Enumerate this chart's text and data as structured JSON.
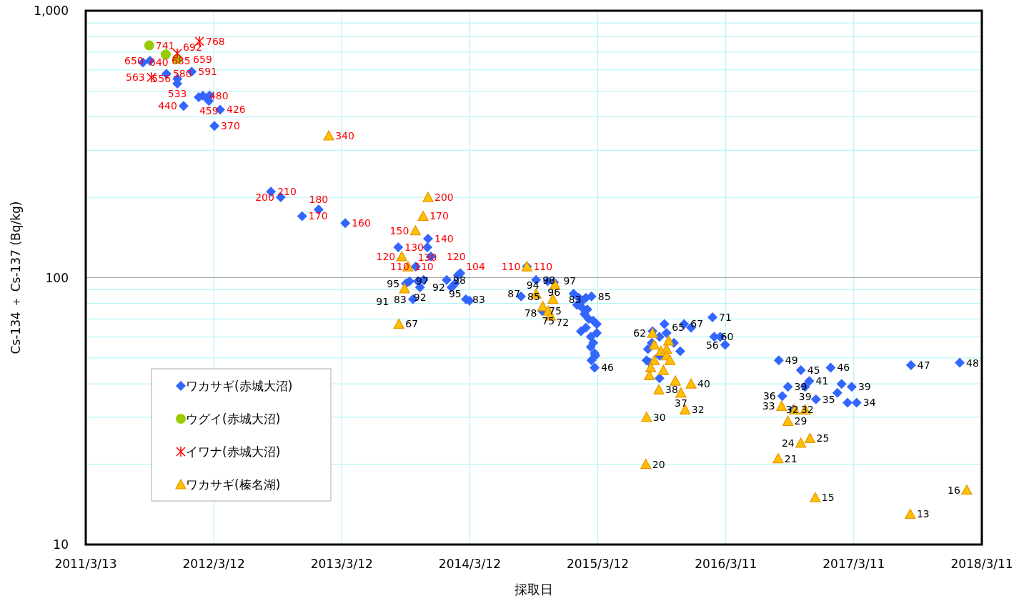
{
  "chart_data": {
    "type": "scatter",
    "xlabel": "採取日",
    "ylabel": "Cs-134 ＋ Cs-137 (Bq/kg)",
    "log": "y",
    "xlim": [
      "2011-03-13",
      "2018-03-11"
    ],
    "xticks": [
      {
        "value": "2011-03-13",
        "label": "2011/3/13"
      },
      {
        "value": "2012-03-12",
        "label": "2012/3/12"
      },
      {
        "value": "2013-03-12",
        "label": "2013/3/12"
      },
      {
        "value": "2014-03-12",
        "label": "2014/3/12"
      },
      {
        "value": "2015-03-12",
        "label": "2015/3/12"
      },
      {
        "value": "2016-03-11",
        "label": "2016/3/11"
      },
      {
        "value": "2017-03-11",
        "label": "2017/3/11"
      },
      {
        "value": "2018-03-11",
        "label": "2018/3/11"
      }
    ],
    "ylim": [
      10,
      1000
    ],
    "yticks": [
      10,
      100,
      {
        "value": 1000,
        "label": "1,000"
      }
    ],
    "grid": true,
    "legend": "bottom left",
    "ref_lines": [
      {
        "axis": "y",
        "value": 100,
        "color": "#a6a6a6",
        "label": null
      }
    ],
    "series": [
      {
        "name": "ワカサギ(赤城大沼)",
        "color": "#3366ff",
        "marker": "diamond",
        "x": [
          "2011-08-23",
          "2011-09-12",
          "2011-10-29",
          "2011-11-29",
          "2011-11-29",
          "2012-01-09",
          "2012-01-29",
          "2012-02-10",
          "2012-02-22",
          "2012-02-29",
          "2012-02-27",
          "2012-03-30",
          "2011-12-17",
          "2012-03-14",
          "2012-08-22",
          "2012-09-19",
          "2012-11-19",
          "2013-01-05",
          "2013-03-22",
          "2013-08-20",
          "2013-11-13",
          "2013-11-11",
          "2013-11-21",
          "2013-10-09",
          "2013-09-21",
          "2013-09-11",
          "2013-10-15",
          "2013-10-31",
          "2013-10-21",
          "2013-10-01",
          "2014-01-05",
          "2014-01-19",
          "2014-01-29",
          "2014-02-06",
          "2014-02-13",
          "2014-03-01",
          "2014-03-11",
          "2014-08-05",
          "2014-08-22",
          "2014-09-17",
          "2014-10-20",
          "2014-11-07",
          "2014-10-05",
          "2015-01-02",
          "2015-01-17",
          "2015-01-27",
          "2015-02-06",
          "2015-02-22",
          "2015-01-12",
          "2015-01-27",
          "2015-02-10",
          "2015-02-02",
          "2015-02-14",
          "2015-02-27",
          "2015-03-09",
          "2015-01-23",
          "2015-02-06",
          "2015-02-20",
          "2015-03-09",
          "2015-02-27",
          "2015-02-20",
          "2015-03-03",
          "2015-03-05",
          "2015-02-22",
          "2015-03-03",
          "2015-08-15",
          "2015-09-04",
          "2015-09-18",
          "2015-09-24",
          "2015-08-02",
          "2015-08-13",
          "2015-09-04",
          "2015-10-15",
          "2015-11-02",
          "2015-07-29",
          "2015-08-08",
          "2015-09-04",
          "2015-11-13",
          "2015-12-03",
          "2016-02-02",
          "2016-02-07",
          "2016-02-24",
          "2016-03-09",
          "2016-08-09",
          "2016-10-11",
          "2017-01-04",
          "2017-08-21",
          "2018-01-07",
          "2016-09-04",
          "2016-08-19",
          "2016-11-04",
          "2016-10-23",
          "2017-02-04",
          "2017-03-05",
          "2017-01-23",
          "2016-11-23",
          "2017-02-21",
          "2017-03-19",
          "2016-09-19"
        ],
        "values": [
          640,
          650,
          580,
          556,
          533,
          591,
          474,
          480,
          472,
          481,
          459,
          426,
          440,
          370,
          210,
          200,
          170,
          180,
          160,
          130,
          140,
          130,
          120,
          110,
          97,
          95,
          97,
          98,
          92,
          83,
          98,
          92,
          95,
          102,
          104,
          83,
          82,
          85,
          110,
          98,
          97,
          96,
          75,
          87,
          84,
          82,
          84,
          85,
          79,
          77,
          76,
          73,
          70,
          69,
          67,
          63,
          65,
          60,
          62,
          57,
          55,
          52,
          51,
          49,
          46,
          63,
          60,
          67,
          62,
          54,
          57,
          51,
          57,
          53,
          49,
          48,
          42,
          67,
          65,
          71,
          60,
          60,
          56,
          49,
          45,
          46,
          47,
          48,
          39,
          36,
          41,
          39,
          40,
          39,
          37,
          35,
          34,
          34,
          32
        ],
        "value_labels": [
          "640",
          "650",
          "580",
          "556",
          "533",
          "591",
          null,
          "480",
          null,
          null,
          "459",
          "426",
          "440",
          "370",
          "210",
          "200",
          "170",
          "180",
          "160",
          "130",
          "140",
          "130",
          "120",
          "110",
          "97",
          "95",
          null,
          null,
          "92",
          "83",
          "98",
          "92",
          "95",
          null,
          "104",
          "83",
          null,
          "85",
          "110",
          "98",
          "97",
          "96",
          "75",
          null,
          null,
          null,
          null,
          "85",
          null,
          null,
          null,
          null,
          null,
          null,
          null,
          null,
          null,
          null,
          null,
          null,
          null,
          null,
          null,
          null,
          "46",
          null,
          null,
          null,
          null,
          null,
          null,
          null,
          null,
          null,
          null,
          null,
          null,
          "67",
          "65",
          "71",
          "60",
          null,
          "56",
          "49",
          "45",
          "46",
          "47",
          "48",
          "39",
          "36",
          "41",
          "39",
          null,
          "39",
          null,
          "35",
          null,
          "34",
          null
        ]
      },
      {
        "name": "ウグイ(赤城大沼)",
        "color": "#99cc00",
        "marker": "circle",
        "x": [
          "2011-09-10",
          "2011-10-27",
          "2011-11-29"
        ],
        "values": [
          741,
          685,
          659
        ],
        "value_labels": [
          "741",
          "685",
          "659"
        ]
      },
      {
        "name": "イワナ(赤城大沼)",
        "color": "#ff0000",
        "marker": "cross",
        "x": [
          "2012-01-31",
          "2011-11-29",
          "2011-09-16"
        ],
        "values": [
          768,
          692,
          563
        ],
        "value_labels": [
          "768",
          "692",
          "563"
        ]
      },
      {
        "name": "ワカサギ(榛名湖)",
        "color": "#ffc000",
        "marker": "triangle",
        "x": [
          "2013-02-03",
          "2013-11-13",
          "2013-10-30",
          "2013-10-08",
          "2013-08-30",
          "2013-09-17",
          "2013-09-07",
          "2013-08-22",
          "2014-08-22",
          "2014-09-17",
          "2014-11-04",
          "2014-10-06",
          "2014-10-22",
          "2014-10-28",
          "2014-11-10",
          "2015-08-15",
          "2015-08-20",
          "2015-09-30",
          "2015-09-08",
          "2015-09-24",
          "2015-09-24",
          "2015-10-04",
          "2015-08-20",
          "2015-08-10",
          "2015-08-06",
          "2015-09-15",
          "2015-10-19",
          "2015-12-03",
          "2015-09-02",
          "2015-11-04",
          "2015-11-16",
          "2015-07-29",
          "2015-07-27",
          "2016-08-17",
          "2016-09-23",
          "2016-10-23",
          "2016-09-04",
          "2016-11-06",
          "2016-10-11",
          "2016-08-07",
          "2016-11-21",
          "2017-08-19",
          "2018-01-27"
        ],
        "values": [
          340,
          200,
          170,
          150,
          120,
          110,
          91,
          67,
          110,
          87,
          83,
          78,
          75,
          72,
          94,
          62,
          56,
          58,
          53,
          54,
          51,
          49,
          49,
          46,
          43,
          45,
          41,
          40,
          38,
          37,
          32,
          30,
          20,
          33,
          32,
          32,
          29,
          25,
          24,
          21,
          15,
          13,
          16
        ],
        "value_labels": [
          "340",
          "200",
          "170",
          "150",
          "120",
          "110",
          "91",
          "67",
          "110",
          "87",
          "83",
          "78",
          "75",
          "72",
          "94",
          "62",
          null,
          null,
          null,
          null,
          null,
          null,
          null,
          null,
          null,
          null,
          null,
          "40",
          "38",
          "37",
          "32",
          "30",
          "20",
          "33",
          "32",
          "32",
          "29",
          "25",
          "24",
          "21",
          "15",
          "13",
          "16"
        ]
      }
    ]
  }
}
